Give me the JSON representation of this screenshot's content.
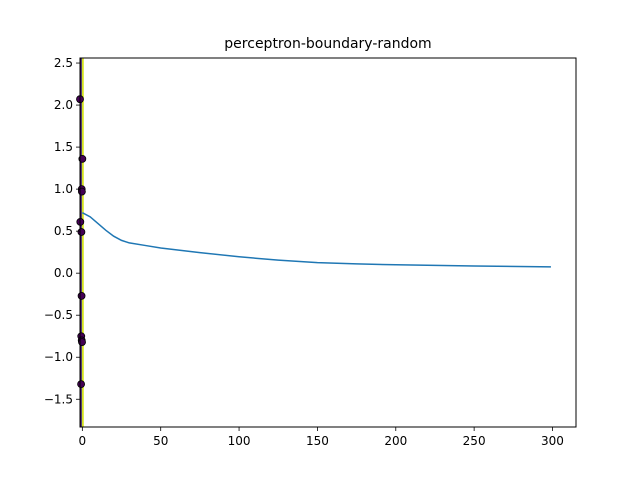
{
  "chart_data": {
    "type": "line",
    "title": "perceptron-boundary-random",
    "xlabel": "",
    "ylabel": "",
    "xlim": [
      -1.5,
      315
    ],
    "ylim": [
      -1.83,
      2.56
    ],
    "grid": false,
    "x_ticks": [
      0,
      50,
      100,
      150,
      200,
      250,
      300
    ],
    "y_ticks": [
      -1.5,
      -1.0,
      -0.5,
      0.0,
      0.5,
      1.0,
      1.5,
      2.0,
      2.5
    ],
    "x_tick_labels": [
      "0",
      "50",
      "100",
      "150",
      "200",
      "250",
      "300"
    ],
    "y_tick_labels": [
      "−1.5",
      "−1.0",
      "−0.5",
      "0.0",
      "0.5",
      "1.0",
      "1.5",
      "2.0",
      "2.5"
    ],
    "colors": {
      "line": "#1f77b4",
      "region_dark": "#440154",
      "region_light": "#d5e21a",
      "points": "#440154",
      "point_edge": "#000000"
    },
    "decision_regions": [
      {
        "x_range": [
          -1.5,
          -0.4
        ],
        "class": "dark"
      },
      {
        "x_range": [
          -0.4,
          -0.2
        ],
        "class": "mid"
      },
      {
        "x_range": [
          -0.2,
          0.9
        ],
        "class": "light"
      }
    ],
    "series": [
      {
        "type": "line",
        "x": [
          0,
          5,
          10,
          15,
          20,
          25,
          30,
          40,
          50,
          75,
          100,
          125,
          150,
          175,
          200,
          250,
          299
        ],
        "values": [
          0.72,
          0.67,
          0.59,
          0.51,
          0.44,
          0.39,
          0.36,
          0.33,
          0.3,
          0.245,
          0.195,
          0.155,
          0.125,
          0.11,
          0.1,
          0.085,
          0.075
        ]
      },
      {
        "type": "scatter",
        "x": [
          -1.5,
          0.0,
          -0.4,
          -0.3,
          -1.3,
          -0.6,
          -0.5,
          -0.7,
          -0.4,
          -0.8,
          -0.2
        ],
        "values": [
          2.07,
          1.36,
          1.0,
          0.97,
          0.61,
          0.49,
          -0.27,
          -0.75,
          -0.8,
          -1.32,
          -0.82
        ]
      }
    ]
  }
}
